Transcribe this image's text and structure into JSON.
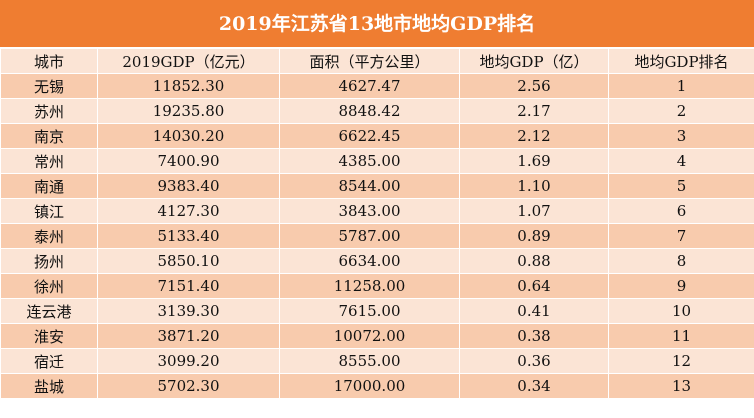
{
  "title": "2019年江苏省13地市地均GDP排名",
  "columns": [
    "城市",
    "2019GDP（亿元）",
    "面积（平方公里）",
    "地均GDP（亿）",
    "地均GDP排名"
  ],
  "rows": [
    [
      "无锡",
      "11852.30",
      "4627.47",
      "2.56",
      "1"
    ],
    [
      "苏州",
      "19235.80",
      "8848.42",
      "2.17",
      "2"
    ],
    [
      "南京",
      "14030.20",
      "6622.45",
      "2.12",
      "3"
    ],
    [
      "常州",
      "7400.90",
      "4385.00",
      "1.69",
      "4"
    ],
    [
      "南通",
      "9383.40",
      "8544.00",
      "1.10",
      "5"
    ],
    [
      "镇江",
      "4127.30",
      "3843.00",
      "1.07",
      "6"
    ],
    [
      "泰州",
      "5133.40",
      "5787.00",
      "0.89",
      "7"
    ],
    [
      "扬州",
      "5850.10",
      "6634.00",
      "0.88",
      "8"
    ],
    [
      "徐州",
      "7151.40",
      "11258.00",
      "0.64",
      "9"
    ],
    [
      "连云港",
      "3139.30",
      "7615.00",
      "0.41",
      "10"
    ],
    [
      "淮安",
      "3871.20",
      "10072.00",
      "0.38",
      "11"
    ],
    [
      "宿迁",
      "3099.20",
      "8555.00",
      "0.36",
      "12"
    ],
    [
      "盐城",
      "5702.30",
      "17000.00",
      "0.34",
      "13"
    ]
  ],
  "colors": {
    "title_bg": "#ef7d31",
    "row_dark": "#f8cbad",
    "row_light": "#fbe4d5"
  }
}
